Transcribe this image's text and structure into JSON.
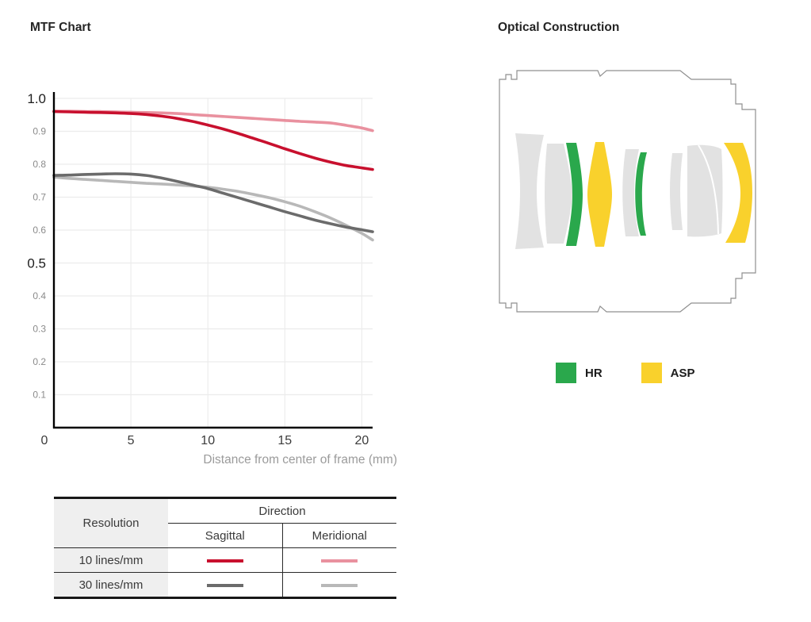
{
  "mtf": {
    "title": "MTF Chart"
  },
  "chart_data": {
    "type": "line",
    "title": "MTF Chart",
    "xlabel": "Distance from center of frame (mm)",
    "ylabel": "",
    "xlim": [
      0,
      20.7
    ],
    "ylim": [
      0,
      1.0
    ],
    "x_ticks": [
      0,
      5,
      10,
      15,
      20
    ],
    "y_ticks": [
      0.1,
      0.2,
      0.3,
      0.4,
      0.5,
      0.6,
      0.7,
      0.8,
      0.9,
      1.0
    ],
    "y_ticks_emphasized": [
      0.5,
      1.0
    ],
    "grid": true,
    "legend_position": "table-below",
    "x": [
      0,
      1,
      2,
      3,
      4,
      5,
      6,
      7,
      8,
      9,
      10,
      11,
      12,
      13,
      14,
      15,
      16,
      17,
      18,
      19,
      20,
      20.7
    ],
    "series": [
      {
        "name": "10 lines/mm Sagittal",
        "color": "#c8102e",
        "values": [
          0.96,
          0.959,
          0.958,
          0.957,
          0.956,
          0.954,
          0.951,
          0.946,
          0.939,
          0.93,
          0.919,
          0.907,
          0.893,
          0.878,
          0.863,
          0.847,
          0.832,
          0.818,
          0.806,
          0.796,
          0.789,
          0.784
        ]
      },
      {
        "name": "10 lines/mm Meridional",
        "color": "#e9919f",
        "values": [
          0.961,
          0.961,
          0.96,
          0.96,
          0.959,
          0.958,
          0.957,
          0.956,
          0.954,
          0.951,
          0.948,
          0.945,
          0.942,
          0.939,
          0.936,
          0.933,
          0.93,
          0.928,
          0.925,
          0.918,
          0.91,
          0.902
        ]
      },
      {
        "name": "30 lines/mm Sagittal",
        "color": "#6b6b6b",
        "values": [
          0.766,
          0.767,
          0.769,
          0.77,
          0.771,
          0.77,
          0.766,
          0.758,
          0.748,
          0.737,
          0.726,
          0.712,
          0.698,
          0.684,
          0.67,
          0.656,
          0.643,
          0.63,
          0.619,
          0.609,
          0.601,
          0.595
        ]
      },
      {
        "name": "30 lines/mm Meridional",
        "color": "#b8b8b8",
        "values": [
          0.761,
          0.757,
          0.754,
          0.751,
          0.748,
          0.745,
          0.742,
          0.74,
          0.737,
          0.734,
          0.73,
          0.724,
          0.717,
          0.708,
          0.698,
          0.686,
          0.672,
          0.655,
          0.636,
          0.614,
          0.59,
          0.57
        ]
      }
    ]
  },
  "legend_table": {
    "col_resolution": "Resolution",
    "col_direction": "Direction",
    "col_sagittal": "Sagittal",
    "col_meridional": "Meridional",
    "rows": [
      {
        "label": "10 lines/mm",
        "sagittal_color": "#c8102e",
        "meridional_color": "#e9919f"
      },
      {
        "label": "30 lines/mm",
        "sagittal_color": "#6b6b6b",
        "meridional_color": "#b8b8b8"
      }
    ]
  },
  "optical": {
    "title": "Optical Construction",
    "legend": [
      {
        "label": "HR",
        "color": "#2aa84c"
      },
      {
        "label": "ASP",
        "color": "#f9d12c"
      }
    ],
    "element_colors": {
      "glass": "#e2e2e2",
      "hr": "#2aa84c",
      "asp": "#f9d12c",
      "outline": "#8f8f8f"
    }
  }
}
